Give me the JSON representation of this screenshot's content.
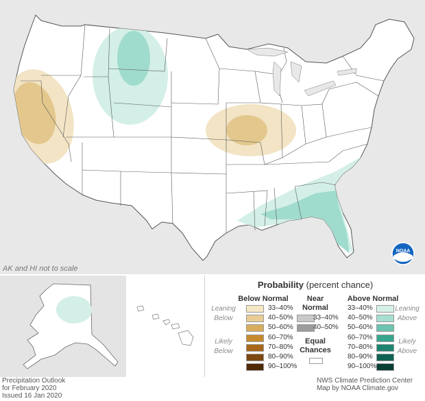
{
  "map": {
    "note": "AK and HI not to scale",
    "colors": {
      "land": "#ffffff",
      "border": "#555555",
      "background": "#e8e8e8",
      "ocean_white": "#ffffff",
      "below_33_40": "#f2e4c4",
      "below_40_50": "#e3c78d",
      "above_33_40": "#d3efe7",
      "above_40_50": "#a0dccd"
    },
    "regions": [
      {
        "name": "California / Nevada",
        "category": "below_normal",
        "core": "40-50%"
      },
      {
        "name": "Northern Rockies",
        "category": "above_normal",
        "core": "40-50%"
      },
      {
        "name": "Missouri / Illinois",
        "category": "below_normal",
        "core": "40-50%"
      },
      {
        "name": "Southeast / Florida",
        "category": "above_normal",
        "core": "40-50%"
      },
      {
        "name": "Alaska",
        "category": "above_normal",
        "core": "33-40%"
      }
    ]
  },
  "legend": {
    "title_bold": "Probability",
    "title_rest": " (percent chance)",
    "below_header": "Below Normal",
    "near_header_line1": "Near",
    "near_header_line2": "Normal",
    "above_header": "Above Normal",
    "leaning_below_1": "Leaning",
    "leaning_below_2": "Below",
    "likely_below_1": "Likely",
    "likely_below_2": "Below",
    "leaning_above_1": "Leaning",
    "leaning_above_2": "Above",
    "likely_above_1": "Likely",
    "likely_above_2": "Above",
    "equal_1": "Equal",
    "equal_2": "Chances",
    "below": [
      {
        "label": "33–40%",
        "color": "#f5e6c4"
      },
      {
        "label": "40–50%",
        "color": "#e8cc94"
      },
      {
        "label": "50–60%",
        "color": "#d8ad5e"
      },
      {
        "label": "60–70%",
        "color": "#c68b30"
      },
      {
        "label": "70–80%",
        "color": "#a8671a"
      },
      {
        "label": "80–90%",
        "color": "#7c4710"
      },
      {
        "label": "90–100%",
        "color": "#4f2a06"
      }
    ],
    "near": [
      {
        "label": "33–40%",
        "color": "#c9c9c9"
      },
      {
        "label": "40–50%",
        "color": "#9c9c9c"
      }
    ],
    "above": [
      {
        "label": "33–40%",
        "color": "#d5f0e8"
      },
      {
        "label": "40–50%",
        "color": "#a6ded0"
      },
      {
        "label": "50–60%",
        "color": "#6cc3af"
      },
      {
        "label": "60–70%",
        "color": "#38a58e"
      },
      {
        "label": "70–80%",
        "color": "#1d8470"
      },
      {
        "label": "80–90%",
        "color": "#0f6353"
      },
      {
        "label": "90–100%",
        "color": "#073f34"
      }
    ],
    "equal_color": "#ffffff"
  },
  "footer": {
    "left_1": "Precipitation Outlook",
    "left_2": "for February 2020",
    "left_3": "Issued 16 Jan 2020",
    "right_1": "NWS Climate Prediction Center",
    "right_2": "Map by NOAA Climate.gov"
  },
  "logo_text": "NOAA"
}
